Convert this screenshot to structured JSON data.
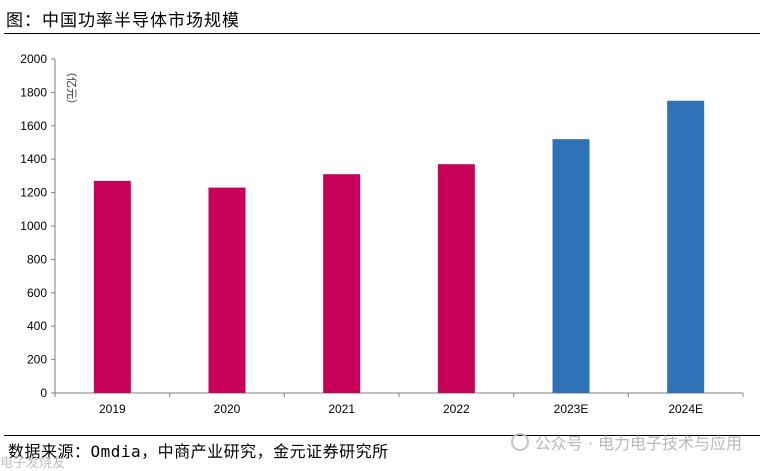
{
  "header": {
    "title": "图：中国功率半导体市场规模"
  },
  "footer": {
    "source": "数据来源：Omdia，中商产业研究，金元证券研究所",
    "watermark": "公众号 · 电力电子技术与应用",
    "corner_mark": "电子发烧友"
  },
  "colors": {
    "actual": "#c8005a",
    "estimate": "#2e72b8",
    "axis": "#7f7f7f"
  },
  "chart_data": {
    "type": "bar",
    "categories": [
      "2019",
      "2020",
      "2021",
      "2022",
      "2023E",
      "2024E"
    ],
    "values": [
      1270,
      1230,
      1310,
      1370,
      1520,
      1750
    ],
    "estimate_flags": [
      false,
      false,
      false,
      false,
      true,
      true
    ],
    "ylim": [
      0,
      2000
    ],
    "yticks": [
      0,
      200,
      400,
      600,
      800,
      1000,
      1200,
      1400,
      1600,
      1800,
      2000
    ],
    "ylabel": "（亿元）",
    "grid": false,
    "legend": "none"
  }
}
